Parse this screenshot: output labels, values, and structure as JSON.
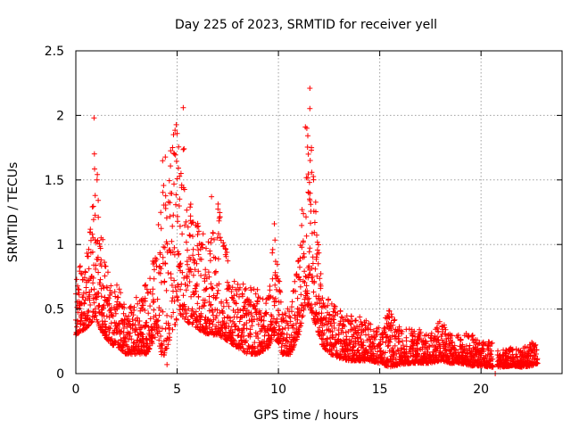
{
  "chart_data": {
    "type": "scatter",
    "title": "Day 225 of 2023, SRMTID for receiver yell",
    "xlabel": "GPS time / hours",
    "ylabel": "SRMTID / TECUs",
    "xlim": [
      0,
      24
    ],
    "ylim": [
      0,
      2.5
    ],
    "xticks": [
      0,
      5,
      10,
      15,
      20
    ],
    "xtick_labels": [
      "0",
      "5",
      "10",
      "15",
      "20"
    ],
    "yticks": [
      0,
      0.5,
      1,
      1.5,
      2,
      2.5
    ],
    "ytick_labels": [
      "0",
      "0.5",
      "1",
      "1.5",
      "2",
      "2.5"
    ],
    "grid": true,
    "marker": "+",
    "series": [
      {
        "name": "SRMTID",
        "color": "#ff0000",
        "envelope": {
          "x": [
            0,
            0.5,
            0.8,
            0.95,
            1.2,
            1.6,
            2.0,
            2.5,
            3.0,
            3.5,
            4.0,
            4.3,
            4.8,
            5.2,
            5.5,
            6.0,
            6.5,
            7.0,
            7.5,
            8.0,
            8.5,
            9.0,
            9.5,
            9.8,
            10.2,
            10.6,
            11.0,
            11.3,
            11.55,
            11.8,
            12.2,
            12.6,
            13.0,
            13.5,
            14.0,
            14.5,
            15.0,
            15.5,
            16.0,
            16.5,
            17.0,
            17.5,
            18.0,
            18.5,
            19.0,
            19.5,
            20.0,
            20.5,
            21.0,
            21.5,
            22.0,
            22.5,
            22.8
          ],
          "upper": [
            0.8,
            0.9,
            1.3,
            2.0,
            1.2,
            0.8,
            0.7,
            0.55,
            0.6,
            0.7,
            1.0,
            1.7,
            1.85,
            2.06,
            1.4,
            1.2,
            1.0,
            1.35,
            0.9,
            0.75,
            0.7,
            0.65,
            0.6,
            1.15,
            0.5,
            0.6,
            0.9,
            1.9,
            2.2,
            1.5,
            0.65,
            0.55,
            0.5,
            0.45,
            0.45,
            0.4,
            0.35,
            0.5,
            0.35,
            0.35,
            0.35,
            0.3,
            0.42,
            0.3,
            0.3,
            0.32,
            0.25,
            0.25,
            0.18,
            0.2,
            0.2,
            0.25,
            0.22
          ],
          "lower": [
            0.3,
            0.35,
            0.4,
            0.45,
            0.35,
            0.25,
            0.2,
            0.15,
            0.15,
            0.15,
            0.3,
            0.1,
            0.35,
            0.45,
            0.4,
            0.35,
            0.3,
            0.3,
            0.25,
            0.2,
            0.15,
            0.15,
            0.2,
            0.3,
            0.15,
            0.15,
            0.3,
            0.5,
            0.5,
            0.4,
            0.2,
            0.15,
            0.12,
            0.1,
            0.1,
            0.1,
            0.08,
            0.05,
            0.07,
            0.08,
            0.08,
            0.08,
            0.1,
            0.08,
            0.08,
            0.06,
            0.06,
            0.05,
            0.05,
            0.06,
            0.05,
            0.06,
            0.08
          ],
          "gaps": [
            [
              20.6,
              20.8
            ]
          ]
        },
        "notable_points": [
          {
            "x": 0.9,
            "y": 1.98
          },
          {
            "x": 1.05,
            "y": 1.5
          },
          {
            "x": 5.3,
            "y": 2.06
          },
          {
            "x": 5.0,
            "y": 1.86
          },
          {
            "x": 6.7,
            "y": 1.37
          },
          {
            "x": 9.8,
            "y": 1.16
          },
          {
            "x": 11.55,
            "y": 2.21
          },
          {
            "x": 11.4,
            "y": 1.9
          },
          {
            "x": 4.5,
            "y": 0.07
          },
          {
            "x": 20.7,
            "y": 0.0
          }
        ]
      }
    ]
  }
}
